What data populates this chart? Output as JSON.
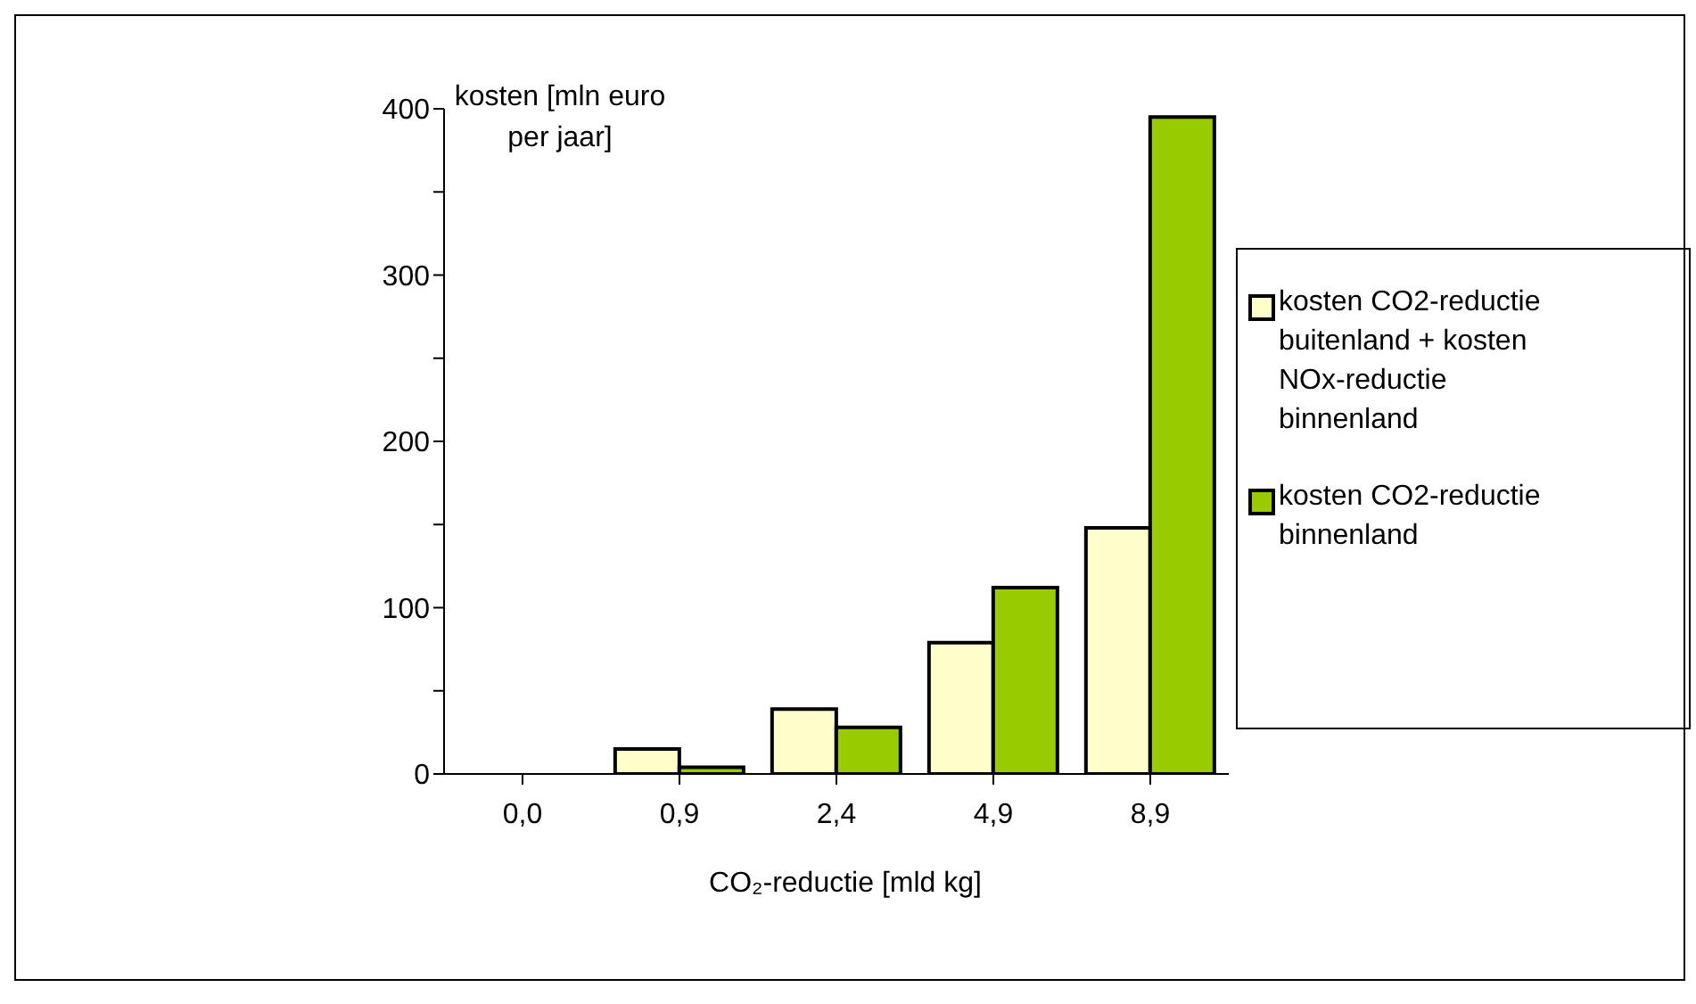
{
  "chart_data": {
    "type": "bar",
    "xlabel": "CO₂-reductie [mld kg]",
    "ylabel": "kosten [mln euro per jaar]",
    "categories": [
      "0,0",
      "0,9",
      "2,4",
      "4,9",
      "8,9"
    ],
    "series": [
      {
        "name": "kosten CO2-reductie buitenland + kosten NOx-reductie binnenland",
        "color": "#ffffcc",
        "values": [
          0,
          15,
          39,
          79,
          148
        ]
      },
      {
        "name": "kosten CO2-reductie binnenland",
        "color": "#99cc00",
        "values": [
          0,
          4,
          28,
          112,
          395
        ]
      }
    ],
    "ylim": [
      0,
      400
    ],
    "yticks": [
      0,
      {
        "value": 50,
        "label": null
      },
      100,
      {
        "value": 150,
        "label": null
      },
      200,
      {
        "value": 250,
        "label": null
      },
      300,
      {
        "value": 350,
        "label": null
      },
      400
    ],
    "legend": "right"
  }
}
